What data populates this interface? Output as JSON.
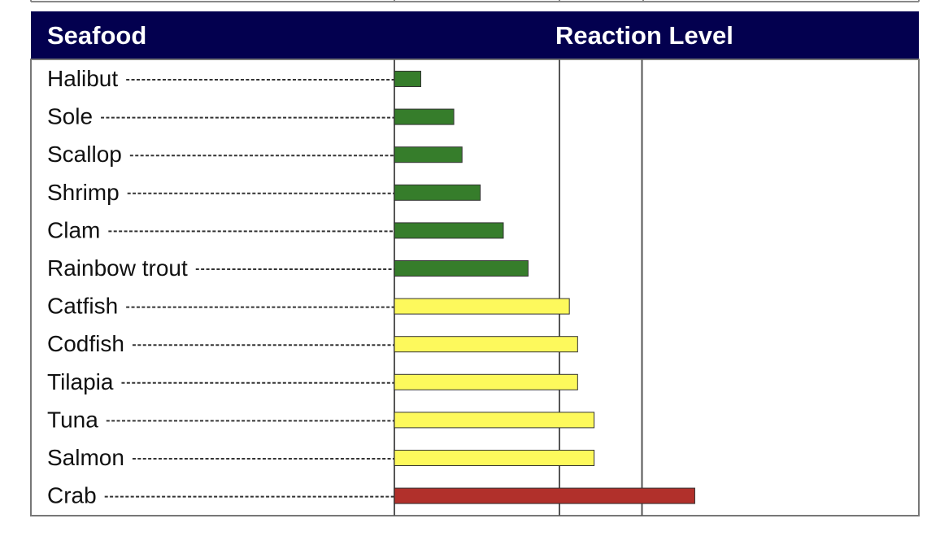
{
  "chart_data": {
    "type": "bar",
    "orientation": "horizontal",
    "category_header": "Seafood",
    "value_header": "Reaction Level",
    "xlim": [
      0,
      3.2
    ],
    "reference_lines": [
      1,
      1.5
    ],
    "grid": false,
    "categories": [
      "Halibut",
      "Sole",
      "Scallop",
      "Shrimp",
      "Clam",
      "Rainbow trout",
      "Catfish",
      "Codfish",
      "Tilapia",
      "Tuna",
      "Salmon",
      "Crab"
    ],
    "values": [
      0.16,
      0.36,
      0.41,
      0.52,
      0.66,
      0.81,
      1.06,
      1.11,
      1.11,
      1.21,
      1.21,
      1.82
    ],
    "bar_colors": [
      "#367d2b",
      "#367d2b",
      "#367d2b",
      "#367d2b",
      "#367d2b",
      "#367d2b",
      "#fdf95c",
      "#fdf95c",
      "#fdf95c",
      "#fdf95c",
      "#fdf95c",
      "#b1302b"
    ],
    "header_color": "#03004f",
    "header_text_color": "#ffffff"
  }
}
